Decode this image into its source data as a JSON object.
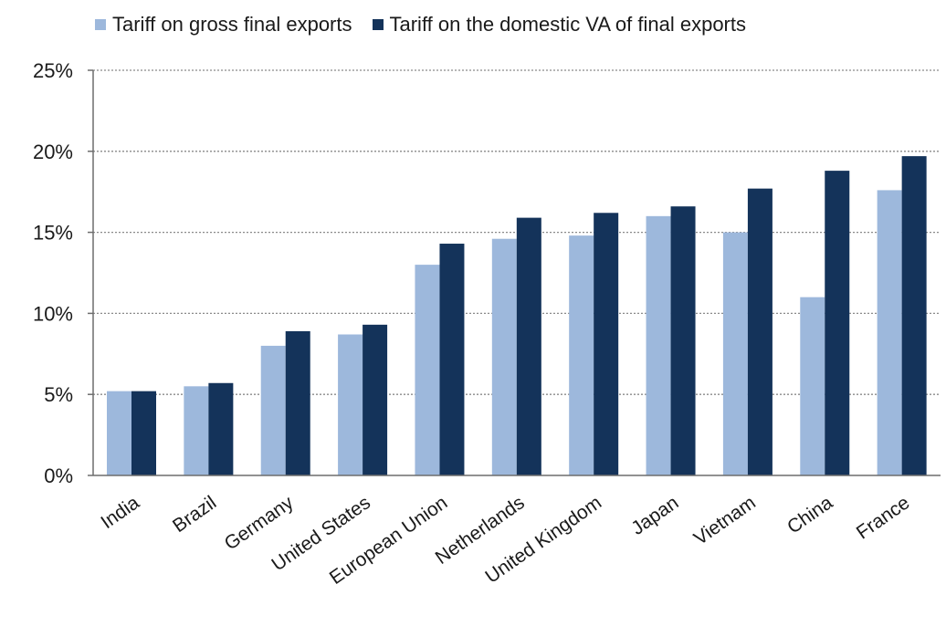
{
  "chart_data": {
    "type": "bar",
    "categories": [
      "India",
      "Brazil",
      "Germany",
      "United States",
      "European Union",
      "Netherlands",
      "United Kingdom",
      "Japan",
      "Vietnam",
      "China",
      "France"
    ],
    "series": [
      {
        "name": "Tariff on gross final exports",
        "color": "#9db8dc",
        "values": [
          5.2,
          5.5,
          8.0,
          8.7,
          13.0,
          14.6,
          14.8,
          16.0,
          15.0,
          11.0,
          17.6
        ]
      },
      {
        "name": "Tariff on the domestic VA of final exports",
        "color": "#14335a",
        "values": [
          5.2,
          5.7,
          8.9,
          9.3,
          14.3,
          15.9,
          16.2,
          16.6,
          17.7,
          18.8,
          19.7
        ]
      }
    ],
    "ylim": [
      0,
      25
    ],
    "yticks": [
      "0%",
      "5%",
      "10%",
      "15%",
      "20%",
      "25%"
    ],
    "ytick_values": [
      0,
      5,
      10,
      15,
      20,
      25
    ],
    "grid": true,
    "legend_position": "top"
  }
}
